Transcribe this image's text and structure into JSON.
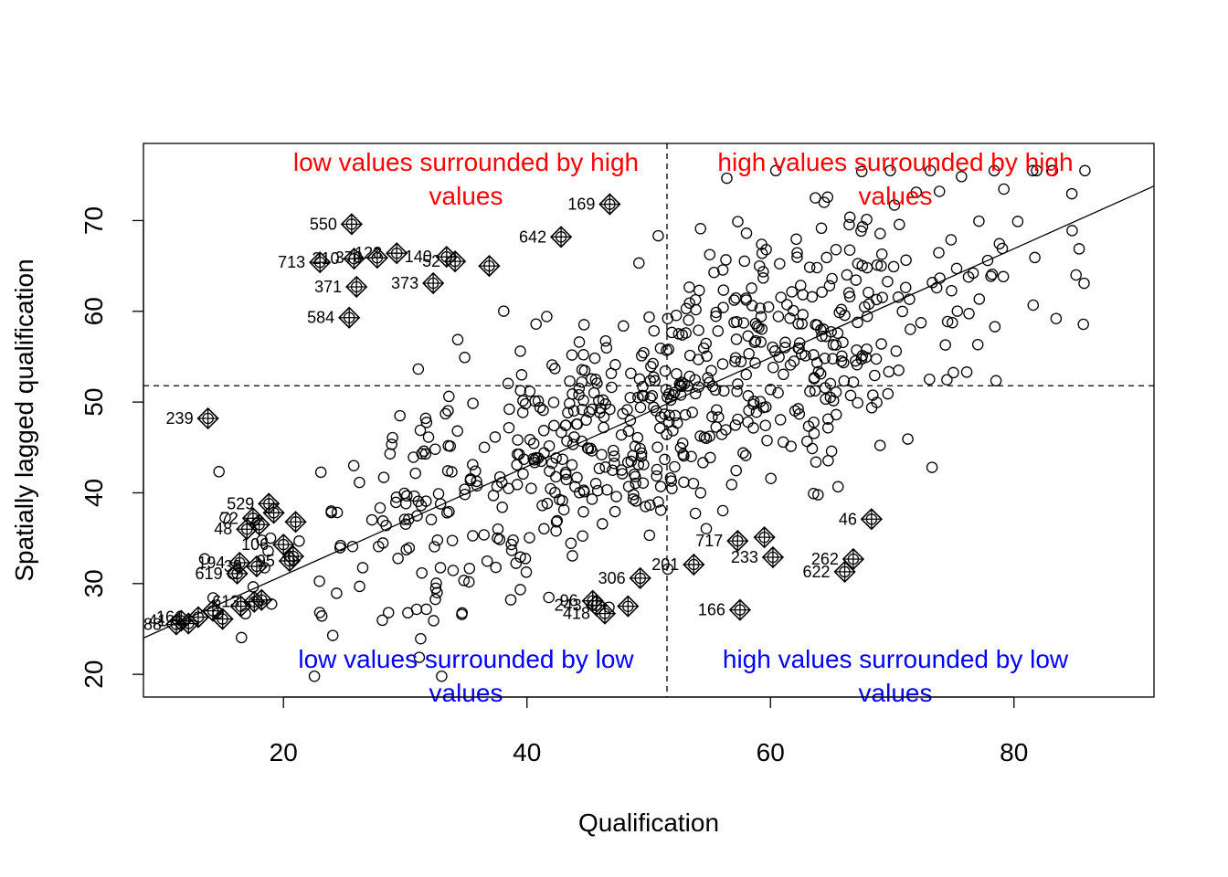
{
  "chart_data": {
    "type": "scatter",
    "title": "",
    "xlabel": "Qualification",
    "ylabel": "Spatially lagged qualification",
    "xlim": [
      8.5,
      91.5
    ],
    "ylim": [
      17.5,
      78.5
    ],
    "x_ticks": [
      20,
      40,
      60,
      80
    ],
    "y_ticks": [
      20,
      30,
      40,
      50,
      60,
      70
    ],
    "mean_x": 51.5,
    "mean_y": 51.8,
    "regression_line": {
      "intercept": 18.9,
      "slope": 0.6
    },
    "quadrant_labels": {
      "top_left": {
        "lines": [
          "low values surrounded by high",
          "values"
        ],
        "color": "#ff0000"
      },
      "top_right": {
        "lines": [
          "high values surrounded by high",
          "values"
        ],
        "color": "#ff0000"
      },
      "bottom_left": {
        "lines": [
          "low values surrounded by low",
          "values"
        ],
        "color": "#0000ff"
      },
      "bottom_right": {
        "lines": [
          "high values surrounded by low",
          "values"
        ],
        "color": "#0000ff"
      }
    },
    "influential_points": [
      {
        "label": "169",
        "x": 46.8,
        "y": 71.8
      },
      {
        "label": "550",
        "x": 25.6,
        "y": 69.6
      },
      {
        "label": "642",
        "x": 42.8,
        "y": 68.2
      },
      {
        "label": "713",
        "x": 23.0,
        "y": 65.4
      },
      {
        "label": "210",
        "x": 25.8,
        "y": 65.8
      },
      {
        "label": "370",
        "x": 27.7,
        "y": 65.9
      },
      {
        "label": "128",
        "x": 29.3,
        "y": 66.4
      },
      {
        "label": "140",
        "x": 33.4,
        "y": 66.0
      },
      {
        "label": "52",
        "x": 34.1,
        "y": 65.5
      },
      {
        "label": "",
        "x": 36.9,
        "y": 65.0
      },
      {
        "label": "371",
        "x": 26.0,
        "y": 62.7
      },
      {
        "label": "373",
        "x": 32.3,
        "y": 63.1
      },
      {
        "label": "584",
        "x": 25.4,
        "y": 59.3
      },
      {
        "label": "239",
        "x": 13.8,
        "y": 48.2
      },
      {
        "label": "529",
        "x": 18.8,
        "y": 38.8
      },
      {
        "label": "72",
        "x": 17.5,
        "y": 37.2
      },
      {
        "label": "",
        "x": 19.2,
        "y": 37.8
      },
      {
        "label": "48",
        "x": 17.0,
        "y": 36.0
      },
      {
        "label": "",
        "x": 18.0,
        "y": 36.5
      },
      {
        "label": "",
        "x": 21.0,
        "y": 36.8
      },
      {
        "label": "106",
        "x": 20.0,
        "y": 34.3
      },
      {
        "label": "",
        "x": 20.8,
        "y": 33.0
      },
      {
        "label": "194",
        "x": 16.4,
        "y": 32.3
      },
      {
        "label": "95",
        "x": 20.5,
        "y": 32.5
      },
      {
        "label": "30",
        "x": 17.8,
        "y": 31.9
      },
      {
        "label": "619",
        "x": 16.2,
        "y": 31.1
      },
      {
        "label": "613",
        "x": 17.6,
        "y": 28.0
      },
      {
        "label": "",
        "x": 16.5,
        "y": 27.5
      },
      {
        "label": "",
        "x": 18.2,
        "y": 28.2
      },
      {
        "label": "161",
        "x": 13.0,
        "y": 26.3
      },
      {
        "label": "",
        "x": 14.2,
        "y": 27.0
      },
      {
        "label": "",
        "x": 12.2,
        "y": 25.6
      },
      {
        "label": "",
        "x": 15.0,
        "y": 26.1
      },
      {
        "label": "41",
        "x": 11.6,
        "y": 25.9
      },
      {
        "label": "88",
        "x": 11.2,
        "y": 25.5
      },
      {
        "label": "96",
        "x": 45.4,
        "y": 28.1
      },
      {
        "label": "418",
        "x": 46.4,
        "y": 26.7
      },
      {
        "label": "243",
        "x": 45.7,
        "y": 27.6
      },
      {
        "label": "",
        "x": 48.3,
        "y": 27.5
      },
      {
        "label": "306",
        "x": 49.3,
        "y": 30.6
      },
      {
        "label": "201",
        "x": 53.7,
        "y": 32.1
      },
      {
        "label": "717",
        "x": 57.3,
        "y": 34.7
      },
      {
        "label": "",
        "x": 59.5,
        "y": 35.1
      },
      {
        "label": "233",
        "x": 60.2,
        "y": 32.9
      },
      {
        "label": "166",
        "x": 57.5,
        "y": 27.1
      },
      {
        "label": "46",
        "x": 68.3,
        "y": 37.1
      },
      {
        "label": "262",
        "x": 66.8,
        "y": 32.7
      },
      {
        "label": "622",
        "x": 66.1,
        "y": 31.3
      }
    ]
  }
}
